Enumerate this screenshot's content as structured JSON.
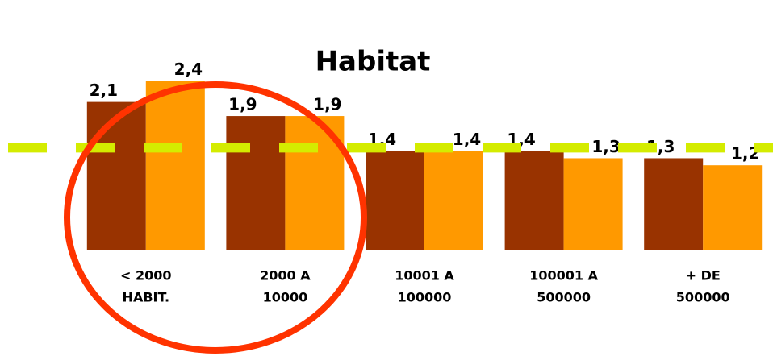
{
  "chart_data": {
    "type": "bar",
    "title": "Habitat",
    "categories": [
      [
        "< 2000",
        "HABIT."
      ],
      [
        "2000 A",
        "10000"
      ],
      [
        "10001 A",
        "100000"
      ],
      [
        "100001 A",
        "500000"
      ],
      [
        "+ DE",
        "500000"
      ]
    ],
    "series": [
      {
        "color": "#993300",
        "values": [
          2.1,
          1.9,
          1.4,
          1.4,
          1.3
        ],
        "value_labels": [
          "2,1",
          "1,9",
          "1,4",
          "1,4",
          "1,3"
        ]
      },
      {
        "color": "#ff9900",
        "values": [
          2.4,
          1.9,
          1.4,
          1.3,
          1.2
        ],
        "value_labels": [
          "2,4",
          "1,9",
          "1,4",
          "1,3",
          "1,2"
        ]
      }
    ],
    "ylim": [
      0,
      3
    ],
    "reference_line": {
      "value": 1.45,
      "color": "#d4ec00"
    }
  }
}
